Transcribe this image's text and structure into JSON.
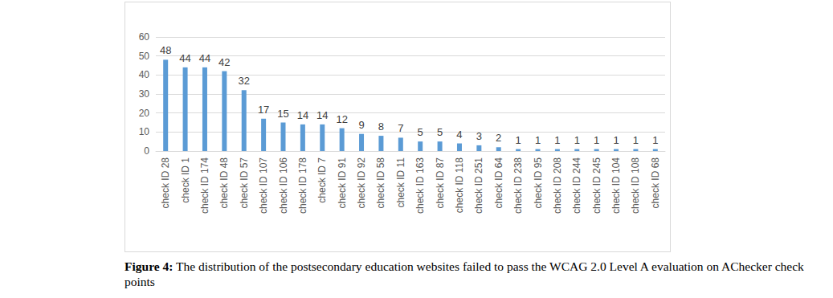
{
  "chart_data": {
    "type": "bar",
    "caption_label": "Figure 4:",
    "caption": "The distribution of the postsecondary education websites failed to pass the WCAG 2.0 Level A evaluation on AChecker check points",
    "categories": [
      "check ID 28",
      "check ID 1",
      "check ID 174",
      "check ID 48",
      "check ID 57",
      "check ID 107",
      "check ID 106",
      "check ID 178",
      "check ID 7",
      "check ID 91",
      "check ID 92",
      "check ID 58",
      "check ID 11",
      "check ID 163",
      "check ID 87",
      "check ID 118",
      "check ID 251",
      "check ID 64",
      "check ID 238",
      "check ID 95",
      "check ID 208",
      "check ID 244",
      "check ID 245",
      "check ID 104",
      "check ID 108",
      "check ID 68"
    ],
    "values": [
      48,
      44,
      44,
      42,
      32,
      17,
      15,
      14,
      14,
      12,
      9,
      8,
      7,
      5,
      5,
      4,
      3,
      2,
      1,
      1,
      1,
      1,
      1,
      1,
      1,
      1
    ],
    "color": "#5b9bd5",
    "ylim": [
      0,
      60
    ],
    "yticks": [
      0,
      10,
      20,
      30,
      40,
      50,
      60
    ],
    "grid": true,
    "data_labels": true
  }
}
